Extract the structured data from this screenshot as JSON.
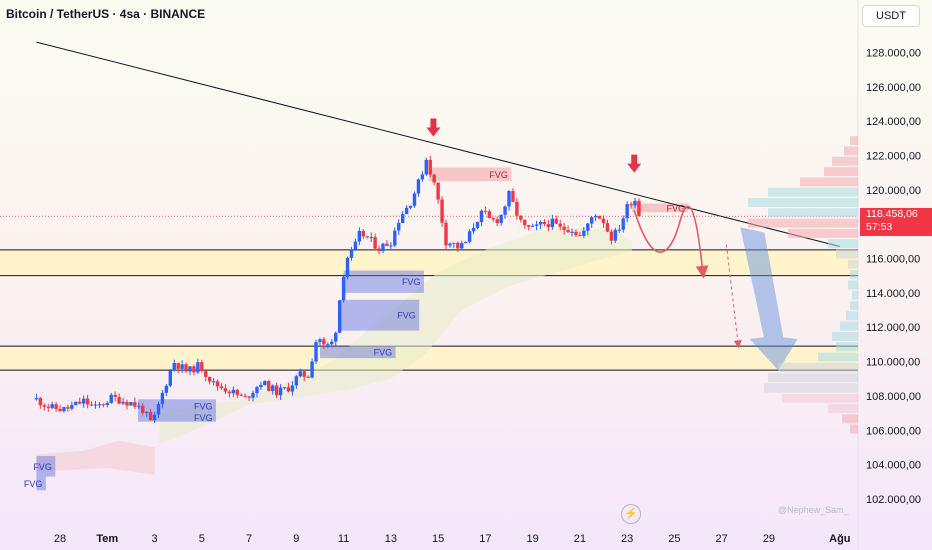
{
  "header": {
    "symbol_title": "Bitcoin / TetherUS · 4sa · BINANCE",
    "currency_button": "USDT"
  },
  "watermark": "@Nephew_Sam_",
  "current_price": {
    "value": "118.458,06",
    "countdown": "57:53",
    "color": "#f23645"
  },
  "colors": {
    "up": "#2962ff",
    "down": "#f23645",
    "zone": "#fff3c4",
    "fvg_bull": "#5b6ee1",
    "fvg_bear": "#f28b92"
  },
  "chart_data": {
    "type": "candlestick",
    "title": "Bitcoin / TetherUS · 4sa · BINANCE",
    "y_axis": {
      "ticks": [
        "128.000,00",
        "126.000,00",
        "124.000,00",
        "122.000,00",
        "120.000,00",
        "116.000,00",
        "114.000,00",
        "112.000,00",
        "110.000,00",
        "108.000,00",
        "106.000,00",
        "104.000,00",
        "102.000,00"
      ],
      "tick_values": [
        128000,
        126000,
        124000,
        122000,
        120000,
        116000,
        114000,
        112000,
        110000,
        108000,
        106000,
        104000,
        102000
      ],
      "range": [
        100400,
        130600
      ]
    },
    "x_axis": {
      "labels": [
        "28",
        "Tem",
        "3",
        "5",
        "7",
        "9",
        "11",
        "13",
        "15",
        "17",
        "19",
        "21",
        "23",
        "25",
        "27",
        "29",
        "Ağu"
      ],
      "label_days": [
        -2,
        0,
        2,
        4,
        6,
        8,
        10,
        12,
        14,
        16,
        18,
        20,
        22,
        24,
        26,
        28,
        31
      ]
    },
    "price_path": [
      [
        -3.0,
        107800
      ],
      [
        -2.4,
        107300
      ],
      [
        -1.8,
        107200
      ],
      [
        -1.0,
        107700
      ],
      [
        -0.5,
        107300
      ],
      [
        0.2,
        107900
      ],
      [
        1.0,
        107600
      ],
      [
        1.5,
        107200
      ],
      [
        1.9,
        106300
      ],
      [
        2.2,
        107600
      ],
      [
        2.8,
        110000
      ],
      [
        3.4,
        109400
      ],
      [
        3.9,
        109800
      ],
      [
        4.5,
        108700
      ],
      [
        5.2,
        108300
      ],
      [
        5.8,
        107800
      ],
      [
        6.5,
        108800
      ],
      [
        7.2,
        108200
      ],
      [
        7.7,
        108500
      ],
      [
        8.1,
        109200
      ],
      [
        8.5,
        109200
      ],
      [
        8.9,
        111600
      ],
      [
        9.2,
        110800
      ],
      [
        9.6,
        111200
      ],
      [
        9.9,
        114300
      ],
      [
        10.1,
        116000
      ],
      [
        10.4,
        116400
      ],
      [
        10.7,
        117500
      ],
      [
        11.0,
        117200
      ],
      [
        11.5,
        116600
      ],
      [
        12.0,
        117000
      ],
      [
        12.4,
        118500
      ],
      [
        12.8,
        119200
      ],
      [
        13.2,
        120500
      ],
      [
        13.5,
        121800
      ],
      [
        13.8,
        120500
      ],
      [
        14.1,
        118800
      ],
      [
        14.3,
        117000
      ],
      [
        14.6,
        116900
      ],
      [
        14.9,
        116600
      ],
      [
        15.2,
        117000
      ],
      [
        15.6,
        118200
      ],
      [
        15.9,
        118700
      ],
      [
        16.2,
        118200
      ],
      [
        16.6,
        118300
      ],
      [
        17.0,
        119700
      ],
      [
        17.3,
        118700
      ],
      [
        17.6,
        117800
      ],
      [
        18.0,
        117700
      ],
      [
        18.4,
        118000
      ],
      [
        18.8,
        118100
      ],
      [
        19.2,
        117700
      ],
      [
        19.6,
        117800
      ],
      [
        20.0,
        117300
      ],
      [
        20.3,
        117800
      ],
      [
        20.6,
        118700
      ],
      [
        21.0,
        118200
      ],
      [
        21.3,
        117200
      ],
      [
        21.6,
        117600
      ],
      [
        22.0,
        119000
      ],
      [
        22.3,
        119600
      ],
      [
        22.5,
        118600
      ]
    ],
    "annotations": {
      "trendline": {
        "start": [
          -3.0,
          128600
        ],
        "end": [
          31.0,
          116700
        ],
        "color": "#131722"
      },
      "current_price_line": 118458,
      "fvg_zones": [
        {
          "label": "FVG",
          "type": "bearish",
          "x": [
            13.6,
            17.1
          ],
          "y": [
            120500,
            121300
          ]
        },
        {
          "label": "FVG",
          "type": "bearish",
          "x": [
            22.2,
            24.6
          ],
          "y": [
            118700,
            119200
          ]
        },
        {
          "label": "FVG",
          "type": "bullish",
          "x": [
            10.0,
            13.4
          ],
          "y": [
            114000,
            115300
          ]
        },
        {
          "label": "FVG",
          "type": "bullish",
          "x": [
            9.8,
            13.2
          ],
          "y": [
            111800,
            113600
          ]
        },
        {
          "label": "FVG",
          "type": "bullish",
          "x": [
            9.0,
            12.2
          ],
          "y": [
            110200,
            110900
          ]
        },
        {
          "label": "FVG",
          "type": "bullish",
          "x": [
            1.3,
            4.6
          ],
          "y": [
            107000,
            107800
          ]
        },
        {
          "label": "FVG",
          "type": "bullish",
          "x": [
            1.3,
            4.6
          ],
          "y": [
            106500,
            107000
          ]
        },
        {
          "label": "FVG",
          "type": "bullish",
          "x": [
            -3.0,
            -2.2
          ],
          "y": [
            103300,
            104500
          ]
        },
        {
          "label": "FVG",
          "type": "bullish",
          "x": [
            -3.0,
            -2.6
          ],
          "y": [
            102500,
            103300
          ]
        }
      ],
      "support_zones": [
        {
          "y": [
            115000,
            116500
          ]
        },
        {
          "y": [
            109500,
            110900
          ]
        }
      ],
      "markers": [
        {
          "type": "down-arrow",
          "x": 13.8,
          "y": 123100
        },
        {
          "type": "down-arrow",
          "x": 22.3,
          "y": 121000
        }
      ]
    }
  }
}
